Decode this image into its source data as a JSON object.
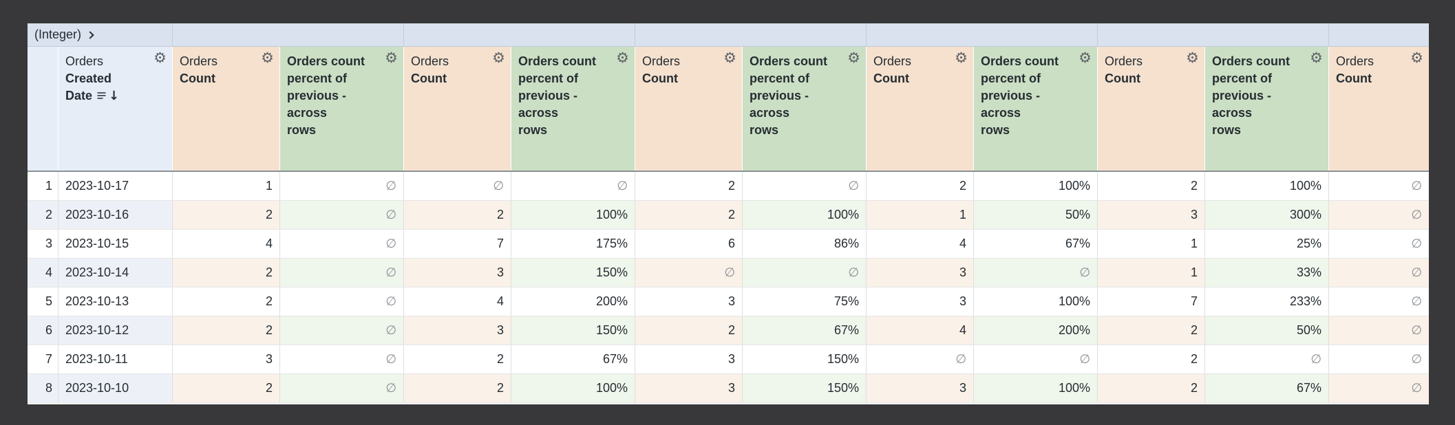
{
  "window": {
    "background_color": "#38383a"
  },
  "pivot_band": {
    "corner_label": "(Integer)",
    "expand_icon": "chevron-right",
    "groups": [
      "",
      "",
      "",
      "",
      "",
      ""
    ]
  },
  "icons": {
    "settings": "gear-icon",
    "sort_desc": "↓",
    "dimension_group": "list-icon",
    "pivot_expand": "chevron-right-icon"
  },
  "headers": {
    "dimension": {
      "view": "Orders",
      "field": "Created\nDate"
    },
    "count": {
      "view": "Orders",
      "field": "Count"
    },
    "pct": {
      "field": "Orders count\npercent of\nprevious -\nacross\nrows"
    }
  },
  "measure_columns": [
    "count",
    "pct",
    "count",
    "pct",
    "count",
    "pct",
    "count",
    "pct",
    "count",
    "pct",
    "count"
  ],
  "null_glyph": "∅",
  "theme": {
    "pivot_band_bg": "#d9e2ee",
    "dimension_header_bg": "#e7edf6",
    "count_header_bg": "#f5e1ce",
    "pct_header_bg": "#cbdfc4",
    "even_row_dim_bg": "#edf1f7",
    "even_row_count_bg": "#faf1e8",
    "even_row_pct_bg": "#eff6ec",
    "text_color": "#262d33",
    "null_color": "#8a8f94"
  },
  "rows": [
    {
      "num": "1",
      "date": "2023-10-17",
      "values": [
        "1",
        "∅",
        "∅",
        "∅",
        "2",
        "∅",
        "2",
        "100%",
        "2",
        "100%",
        "∅"
      ]
    },
    {
      "num": "2",
      "date": "2023-10-16",
      "values": [
        "2",
        "∅",
        "2",
        "100%",
        "2",
        "100%",
        "1",
        "50%",
        "3",
        "300%",
        "∅"
      ]
    },
    {
      "num": "3",
      "date": "2023-10-15",
      "values": [
        "4",
        "∅",
        "7",
        "175%",
        "6",
        "86%",
        "4",
        "67%",
        "1",
        "25%",
        "∅"
      ]
    },
    {
      "num": "4",
      "date": "2023-10-14",
      "values": [
        "2",
        "∅",
        "3",
        "150%",
        "∅",
        "∅",
        "3",
        "∅",
        "1",
        "33%",
        "∅"
      ]
    },
    {
      "num": "5",
      "date": "2023-10-13",
      "values": [
        "2",
        "∅",
        "4",
        "200%",
        "3",
        "75%",
        "3",
        "100%",
        "7",
        "233%",
        "∅"
      ]
    },
    {
      "num": "6",
      "date": "2023-10-12",
      "values": [
        "2",
        "∅",
        "3",
        "150%",
        "2",
        "67%",
        "4",
        "200%",
        "2",
        "50%",
        "∅"
      ]
    },
    {
      "num": "7",
      "date": "2023-10-11",
      "values": [
        "3",
        "∅",
        "2",
        "67%",
        "3",
        "150%",
        "∅",
        "∅",
        "2",
        "∅",
        "∅"
      ]
    },
    {
      "num": "8",
      "date": "2023-10-10",
      "values": [
        "2",
        "∅",
        "2",
        "100%",
        "3",
        "150%",
        "3",
        "100%",
        "2",
        "67%",
        "∅"
      ]
    }
  ]
}
